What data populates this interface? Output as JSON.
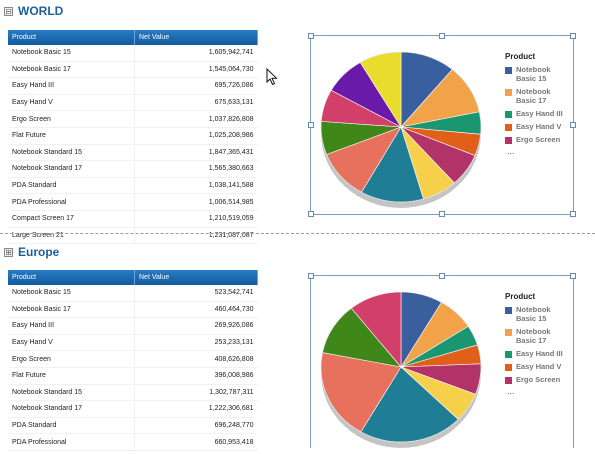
{
  "sections": [
    {
      "title": "WORLD",
      "toggle": "⊟",
      "table": {
        "headers": [
          "Product",
          "Net Value"
        ],
        "rows": [
          [
            "Notebook Basic 15",
            "1,605,942,741"
          ],
          [
            "Notebook Basic 17",
            "1,545,064,730"
          ],
          [
            "Easy Hand III",
            "695,726,086"
          ],
          [
            "Easy Hand V",
            "675,633,131"
          ],
          [
            "Ergo Screen",
            "1,037,826,808"
          ],
          [
            "Flat Future",
            "1,025,208,986"
          ],
          [
            "Notebook Standard 15",
            "1,847,365,431"
          ],
          [
            "Notebook Standard 17",
            "1,565,380,663"
          ],
          [
            "PDA Standard",
            "1,038,141,588"
          ],
          [
            "PDA Professional",
            "1,006,514,985"
          ],
          [
            "Compact Screen 17",
            "1,210,519,059"
          ],
          [
            "Large Screen 21",
            "1,231,087,087"
          ]
        ]
      },
      "legend": {
        "title": "Product",
        "items": [
          "Notebook Basic 15",
          "Notebook Basic 17",
          "Easy Hand III",
          "Easy Hand V",
          "Ergo Screen"
        ],
        "more": "..."
      },
      "chart_data": {
        "type": "pie",
        "categories": [
          "Notebook Basic 15",
          "Notebook Basic 17",
          "Easy Hand III",
          "Easy Hand V",
          "Ergo Screen",
          "Flat Future",
          "Notebook Standard 15",
          "Notebook Standard 17",
          "PDA Standard",
          "PDA Professional",
          "Compact Screen 17",
          "Large Screen 21"
        ],
        "values": [
          1605942741,
          1545064730,
          695726086,
          675633131,
          1037826808,
          1025208986,
          1847365431,
          1565380663,
          1038141588,
          1006514985,
          1210519059,
          1231087087
        ],
        "colors": [
          "#3a5f9e",
          "#f2a34a",
          "#1a9770",
          "#e0601a",
          "#b2336a",
          "#f6d04a",
          "#1f7d96",
          "#e8715e",
          "#3f8718",
          "#d23f6a",
          "#6a1aa8",
          "#eadc2c"
        ],
        "legend_position": "right"
      }
    },
    {
      "title": "Europe",
      "toggle": "⊞",
      "table": {
        "headers": [
          "Product",
          "Net Value"
        ],
        "rows": [
          [
            "Notebook Basic 15",
            "523,542,741"
          ],
          [
            "Notebook Basic 17",
            "460,464,730"
          ],
          [
            "Easy Hand III",
            "269,926,086"
          ],
          [
            "Easy Hand V",
            "253,233,131"
          ],
          [
            "Ergo Screen",
            "408,626,808"
          ],
          [
            "Flat Future",
            "396,008,986"
          ],
          [
            "Notebook Standard 15",
            "1,302,787,311"
          ],
          [
            "Notebook Standard 17",
            "1,222,306,681"
          ],
          [
            "PDA Standard",
            "696,248,770"
          ],
          [
            "PDA Professional",
            "660,953,418"
          ]
        ]
      },
      "legend": {
        "title": "Product",
        "items": [
          "Notebook Basic 15",
          "Notebook Basic 17",
          "Easy Hand III",
          "Easy Hand V",
          "Ergo Screen"
        ],
        "more": "..."
      },
      "chart_data": {
        "type": "pie",
        "categories": [
          "Notebook Basic 15",
          "Notebook Basic 17",
          "Easy Hand III",
          "Easy Hand V",
          "Ergo Screen",
          "Flat Future",
          "Notebook Standard 15",
          "Notebook Standard 17",
          "PDA Standard",
          "PDA Professional"
        ],
        "values": [
          523542741,
          460464730,
          269926086,
          253233131,
          408626808,
          396008986,
          1302787311,
          1222306681,
          696248770,
          660953418
        ],
        "colors": [
          "#3a5f9e",
          "#f2a34a",
          "#1a9770",
          "#e0601a",
          "#b2336a",
          "#f6d04a",
          "#1f7d96",
          "#e8715e",
          "#3f8718",
          "#d23f6a",
          "#6a1aa8",
          "#eadc2c"
        ],
        "legend_position": "right"
      }
    }
  ],
  "cursor_icon": "arrow-cursor-icon"
}
